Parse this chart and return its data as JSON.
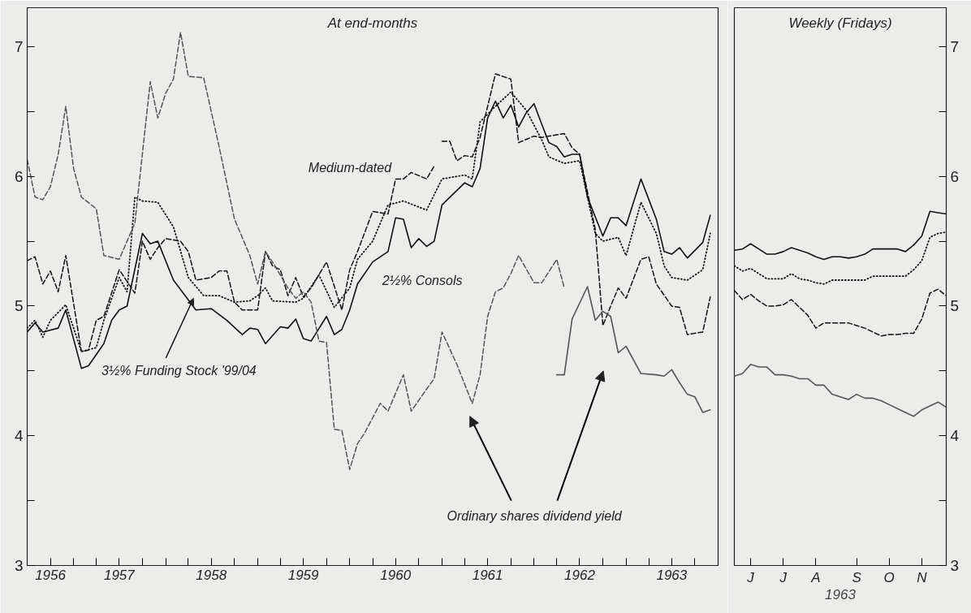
{
  "chart_data": [
    {
      "type": "line",
      "title": "At end-months",
      "xlim": [
        "1956-06-30",
        "1963-12-31"
      ],
      "ylim": [
        3,
        7.3
      ],
      "xticks": [
        {
          "value": "1956-09-30",
          "label": "1956"
        },
        {
          "value": "1956-12-31",
          "label": null
        },
        {
          "value": "1957-03-31",
          "label": null
        },
        {
          "value": "1957-06-30",
          "label": "1957"
        },
        {
          "value": "1957-09-30",
          "label": null
        },
        {
          "value": "1957-12-31",
          "label": null
        },
        {
          "value": "1958-03-31",
          "label": null
        },
        {
          "value": "1958-06-30",
          "label": "1958"
        },
        {
          "value": "1958-09-30",
          "label": null
        },
        {
          "value": "1958-12-31",
          "label": null
        },
        {
          "value": "1959-03-31",
          "label": null
        },
        {
          "value": "1959-06-30",
          "label": "1959"
        },
        {
          "value": "1959-09-30",
          "label": null
        },
        {
          "value": "1959-12-31",
          "label": null
        },
        {
          "value": "1960-03-31",
          "label": null
        },
        {
          "value": "1960-06-30",
          "label": "1960"
        },
        {
          "value": "1960-09-30",
          "label": null
        },
        {
          "value": "1960-12-31",
          "label": null
        },
        {
          "value": "1961-03-31",
          "label": null
        },
        {
          "value": "1961-06-30",
          "label": "1961"
        },
        {
          "value": "1961-09-30",
          "label": null
        },
        {
          "value": "1961-12-31",
          "label": null
        },
        {
          "value": "1962-03-31",
          "label": null
        },
        {
          "value": "1962-06-30",
          "label": "1962"
        },
        {
          "value": "1962-09-30",
          "label": null
        },
        {
          "value": "1962-12-31",
          "label": null
        },
        {
          "value": "1963-03-31",
          "label": null
        },
        {
          "value": "1963-06-30",
          "label": "1963"
        },
        {
          "value": "1963-09-30",
          "label": null
        }
      ],
      "yticks": [
        3,
        {
          "value": 3.5,
          "label": null
        },
        4,
        {
          "value": 4.5,
          "label": null
        },
        5,
        {
          "value": 5.5,
          "label": null
        },
        6,
        {
          "value": 6.5,
          "label": null
        },
        7
      ],
      "annotations": [
        "Ordinary shares dividend yield"
      ],
      "series": [
        {
          "name": "2½% Consols",
          "color": "#111111",
          "line_style": "solid",
          "x": [
            "1956-06-30",
            "1956-07-31",
            "1956-08-31",
            "1956-10-31",
            "1956-11-30",
            "1957-01-31",
            "1957-02-28",
            "1957-04-30",
            "1957-05-31",
            "1957-06-30",
            "1957-07-31",
            "1957-09-30",
            "1957-10-31",
            "1957-11-30",
            "1958-01-31",
            "1958-04-30",
            "1958-06-30",
            "1958-08-31",
            "1958-10-31",
            "1958-11-30",
            "1958-12-31",
            "1959-01-31",
            "1959-03-31",
            "1959-04-30",
            "1959-05-31",
            "1959-06-30",
            "1959-07-31",
            "1959-09-30",
            "1959-10-31",
            "1959-11-30",
            "1959-12-31",
            "1960-01-31",
            "1960-03-31",
            "1960-05-31",
            "1960-06-30",
            "1960-07-31",
            "1960-08-31",
            "1960-09-30",
            "1960-10-31",
            "1960-11-30",
            "1960-12-31",
            "1961-03-31",
            "1961-04-30",
            "1961-05-31",
            "1961-06-30",
            "1961-07-31",
            "1961-08-31",
            "1961-09-30",
            "1961-10-31",
            "1961-11-30",
            "1961-12-31",
            "1962-01-31",
            "1962-02-28",
            "1962-03-31",
            "1962-04-30",
            "1962-05-31",
            "1962-06-30",
            "1962-07-31",
            "1962-09-30",
            "1962-10-31",
            "1962-11-30",
            "1962-12-31",
            "1963-02-28",
            "1963-04-30",
            "1963-05-31",
            "1963-06-30",
            "1963-07-31",
            "1963-08-31",
            "1963-10-31",
            "1963-11-30"
          ],
          "values": [
            4.8,
            4.87,
            4.8,
            4.83,
            4.97,
            4.52,
            4.54,
            4.71,
            4.89,
            4.97,
            5.0,
            5.56,
            5.48,
            5.5,
            5.2,
            4.97,
            4.98,
            4.89,
            4.78,
            4.83,
            4.82,
            4.71,
            4.84,
            4.83,
            4.9,
            4.75,
            4.73,
            4.92,
            4.78,
            4.82,
            4.97,
            5.17,
            5.34,
            5.42,
            5.68,
            5.67,
            5.45,
            5.52,
            5.46,
            5.5,
            5.78,
            5.95,
            5.92,
            6.06,
            6.45,
            6.58,
            6.45,
            6.55,
            6.38,
            6.49,
            6.56,
            6.4,
            6.26,
            6.23,
            6.15,
            6.17,
            6.17,
            5.84,
            5.54,
            5.68,
            5.68,
            5.62,
            5.98,
            5.67,
            5.42,
            5.4,
            5.45,
            5.37,
            5.49,
            5.7
          ]
        },
        {
          "name": "3½% Funding Stock '99/04",
          "color": "#111111",
          "line_style": "dotted",
          "x": [
            "1956-06-30",
            "1956-07-31",
            "1956-08-31",
            "1956-09-30",
            "1956-11-30",
            "1957-01-31",
            "1957-03-31",
            "1957-04-30",
            "1957-06-30",
            "1957-07-31",
            "1957-08-31",
            "1957-09-30",
            "1957-11-30",
            "1958-01-31",
            "1958-03-31",
            "1958-05-31",
            "1958-07-31",
            "1958-09-30",
            "1958-11-30",
            "1958-12-31",
            "1959-01-31",
            "1959-02-28",
            "1959-05-31",
            "1959-06-30",
            "1959-08-31",
            "1959-10-31",
            "1959-12-31",
            "1960-01-31",
            "1960-03-31",
            "1960-05-31",
            "1960-07-31",
            "1960-10-31",
            "1960-12-31",
            "1961-03-31",
            "1961-04-30",
            "1961-05-31",
            "1961-07-31",
            "1961-09-30",
            "1961-11-30",
            "1962-01-31",
            "1962-02-28",
            "1962-04-30",
            "1962-06-30",
            "1962-08-31",
            "1962-09-30",
            "1962-11-30",
            "1962-12-31",
            "1963-02-28",
            "1963-04-30",
            "1963-05-31",
            "1963-06-30",
            "1963-08-31",
            "1963-10-31",
            "1963-11-30"
          ],
          "values": [
            4.83,
            4.89,
            4.76,
            4.89,
            5.01,
            4.65,
            4.68,
            4.89,
            5.22,
            5.11,
            5.84,
            5.81,
            5.8,
            5.61,
            5.22,
            5.08,
            5.08,
            5.03,
            5.04,
            5.08,
            5.14,
            5.04,
            5.03,
            5.06,
            5.24,
            4.99,
            5.14,
            5.36,
            5.5,
            5.78,
            5.81,
            5.74,
            5.98,
            6.01,
            5.98,
            6.42,
            6.54,
            6.65,
            6.51,
            6.28,
            6.15,
            6.1,
            6.12,
            5.56,
            5.5,
            5.53,
            5.39,
            5.8,
            5.56,
            5.31,
            5.22,
            5.2,
            5.28,
            5.56
          ]
        },
        {
          "name": "Medium-dated",
          "color": "#111111",
          "line_style": "dashed",
          "x": [
            "1956-06-30",
            "1956-07-31",
            "1956-08-31",
            "1956-09-30",
            "1956-10-31",
            "1956-11-30",
            "1957-01-31",
            "1957-02-28",
            "1957-03-31",
            "1957-04-30",
            "1957-06-30",
            "1957-08-31",
            "1957-09-30",
            "1957-10-31",
            "1957-11-30",
            "1957-12-31",
            "1958-02-28",
            "1958-03-31",
            "1958-04-30",
            "1958-06-30",
            "1958-07-31",
            "1958-08-31",
            "1958-09-30",
            "1958-10-31",
            "1958-12-31",
            "1959-01-31",
            "1959-02-28",
            "1959-03-31",
            "1959-04-30",
            "1959-05-31",
            "1959-06-30",
            "1959-07-31",
            "1959-09-30",
            "1959-11-30",
            "1959-12-31",
            "1960-01-31",
            "1960-03-31",
            "1960-05-31",
            "1960-06-30",
            "1960-07-31",
            "1960-08-31",
            "1960-10-31",
            "1960-11-30",
            "1960-12-15",
            "1960-12-31",
            "1961-01-31",
            "1961-02-28",
            "1961-03-31",
            "1961-04-30",
            "1961-05-31",
            "1961-06-30",
            "1961-07-31",
            "1961-09-30",
            "1961-10-31",
            "1961-12-31",
            "1962-01-31",
            "1962-04-30",
            "1962-05-31",
            "1962-06-30",
            "1962-08-31",
            "1962-09-30",
            "1962-10-31",
            "1962-11-30",
            "1962-12-31",
            "1963-02-28",
            "1963-03-31",
            "1963-04-30",
            "1963-06-30",
            "1963-07-31",
            "1963-08-31",
            "1963-10-31",
            "1963-11-30"
          ],
          "values": [
            5.35,
            5.38,
            5.17,
            5.27,
            5.11,
            5.39,
            4.65,
            4.66,
            4.89,
            4.92,
            5.28,
            5.1,
            5.5,
            5.36,
            5.45,
            5.52,
            5.5,
            5.42,
            5.2,
            5.22,
            5.27,
            5.27,
            5.03,
            4.97,
            4.97,
            5.42,
            5.31,
            5.28,
            5.08,
            5.22,
            5.07,
            5.14,
            5.34,
            4.97,
            5.28,
            5.42,
            5.73,
            5.71,
            5.98,
            5.98,
            6.03,
            5.98,
            6.08,
            null,
            6.27,
            6.27,
            6.12,
            6.16,
            6.15,
            6.3,
            6.54,
            6.79,
            6.75,
            6.26,
            6.31,
            6.3,
            6.33,
            6.22,
            6.17,
            5.59,
            4.85,
            5.0,
            5.14,
            5.06,
            5.36,
            5.38,
            5.17,
            5.0,
            4.99,
            4.78,
            4.8,
            5.07
          ]
        },
        {
          "color": "#555555",
          "line_style": "dashed",
          "x": [
            "1956-06-30",
            "1956-07-31",
            "1956-08-31",
            "1956-09-30",
            "1956-10-31",
            "1956-11-30",
            "1956-12-31",
            "1957-01-31",
            "1957-03-31",
            "1957-04-30",
            "1957-06-30",
            "1957-07-31",
            "1957-08-31",
            "1957-10-31",
            "1957-11-30",
            "1957-12-31",
            "1958-01-31",
            "1958-02-28",
            "1958-03-31",
            "1958-05-31",
            "1958-07-31",
            "1958-09-30",
            "1958-11-30",
            "1958-12-31",
            "1959-01-31",
            "1959-02-28",
            "1959-04-30",
            "1959-05-31",
            "1959-06-30",
            "1959-07-31",
            "1959-08-31",
            "1959-09-30",
            "1959-10-31",
            "1959-11-30",
            "1959-12-31",
            "1960-01-31",
            "1960-02-28",
            "1960-04-30",
            "1960-05-31",
            "1960-07-31",
            "1960-08-31",
            "1960-10-31",
            "1960-11-30",
            "1960-12-31",
            "1961-02-28",
            "1961-04-30",
            "1961-05-31",
            "1961-06-30",
            "1961-07-31",
            "1961-08-31",
            "1961-09-30",
            "1961-10-31",
            "1961-12-31",
            "1962-01-31",
            "1962-03-31",
            "1962-04-30"
          ],
          "values": [
            6.13,
            5.84,
            5.82,
            5.92,
            6.17,
            6.54,
            6.06,
            5.84,
            5.75,
            5.39,
            5.36,
            5.5,
            5.64,
            6.73,
            6.45,
            6.64,
            6.75,
            7.11,
            6.77,
            6.76,
            6.23,
            5.67,
            5.39,
            5.17,
            5.42,
            5.34,
            5.14,
            5.06,
            5.11,
            5.03,
            4.73,
            4.72,
            4.05,
            4.04,
            3.74,
            3.94,
            4.02,
            4.25,
            4.19,
            4.47,
            4.19,
            4.36,
            4.44,
            4.8,
            4.55,
            4.25,
            4.47,
            4.92,
            5.11,
            5.14,
            5.25,
            5.39,
            5.18,
            5.18,
            5.36,
            5.14
          ]
        },
        {
          "color": "#555555",
          "line_style": "solid",
          "x": [
            "1962-03-31",
            "1962-04-30",
            "1962-05-31",
            "1962-07-31",
            "1962-08-31",
            "1962-09-30",
            "1962-10-31",
            "1962-11-30",
            "1962-12-31",
            "1963-02-28",
            "1963-04-30",
            "1963-05-31",
            "1963-06-30",
            "1963-07-31",
            "1963-08-31",
            "1963-09-30",
            "1963-10-31",
            "1963-11-30"
          ],
          "values": [
            4.47,
            4.47,
            4.9,
            5.15,
            4.89,
            4.96,
            4.92,
            4.64,
            4.69,
            4.48,
            4.47,
            4.46,
            4.51,
            4.41,
            4.32,
            4.3,
            4.18,
            4.2
          ]
        }
      ]
    },
    {
      "type": "line",
      "title": "Weekly (Fridays)",
      "xlabel": "1963",
      "categories": [
        null,
        null,
        "J",
        null,
        null,
        null,
        "J",
        null,
        null,
        null,
        "A",
        null,
        null,
        null,
        null,
        "S",
        null,
        null,
        null,
        "O",
        null,
        null,
        null,
        "N",
        null,
        null,
        null
      ],
      "ylim": [
        3,
        7.3
      ],
      "yticks": [
        3,
        {
          "value": 3.5,
          "label": null
        },
        4,
        {
          "value": 4.5,
          "label": null
        },
        5,
        {
          "value": 5.5,
          "label": null
        },
        6,
        {
          "value": 6.5,
          "label": null
        },
        7
      ],
      "series": [
        {
          "color": "#111111",
          "line_style": "solid",
          "values": [
            5.43,
            5.44,
            5.48,
            5.44,
            5.4,
            5.4,
            5.42,
            5.45,
            5.43,
            5.41,
            5.38,
            5.36,
            5.38,
            5.38,
            5.37,
            5.38,
            5.4,
            5.44,
            5.44,
            5.44,
            5.44,
            5.42,
            5.47,
            5.54,
            5.73,
            5.72,
            5.71
          ]
        },
        {
          "color": "#111111",
          "line_style": "dotted",
          "values": [
            5.31,
            5.27,
            5.29,
            5.25,
            5.21,
            5.21,
            5.21,
            5.25,
            5.21,
            5.2,
            5.18,
            5.17,
            5.2,
            5.2,
            5.2,
            5.2,
            5.2,
            5.23,
            5.23,
            5.23,
            5.23,
            5.23,
            5.28,
            5.35,
            5.53,
            5.56,
            5.57
          ]
        },
        {
          "color": "#111111",
          "line_style": "dashed",
          "values": [
            5.12,
            5.05,
            5.09,
            5.04,
            5.0,
            5.0,
            5.01,
            5.05,
            4.99,
            4.93,
            4.83,
            4.87,
            4.87,
            4.87,
            4.87,
            4.85,
            4.83,
            4.8,
            4.77,
            4.78,
            4.78,
            4.79,
            4.79,
            4.9,
            5.1,
            5.13,
            5.08
          ]
        },
        {
          "color": "#555555",
          "line_style": "solid",
          "values": [
            4.46,
            4.48,
            4.55,
            4.53,
            4.53,
            4.47,
            4.47,
            4.46,
            4.44,
            4.44,
            4.39,
            4.39,
            4.32,
            4.3,
            4.28,
            4.32,
            4.29,
            4.29,
            4.27,
            4.24,
            4.21,
            4.18,
            4.15,
            4.2,
            4.23,
            4.26,
            4.22
          ]
        }
      ]
    }
  ]
}
